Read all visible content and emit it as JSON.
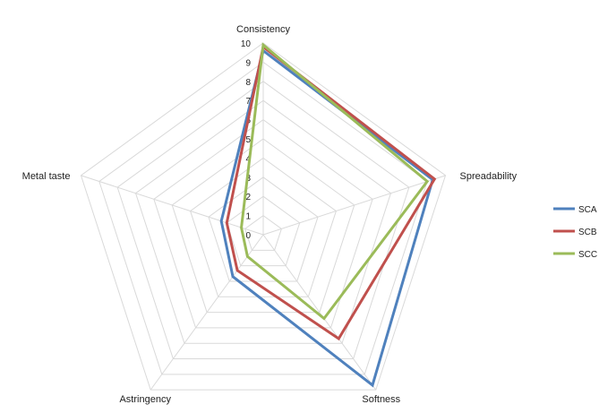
{
  "chart_data": {
    "type": "radar",
    "axes": [
      "Consistency",
      "Spreadability",
      "Softness",
      "Astringency",
      "Metal taste"
    ],
    "rlim": [
      0,
      10
    ],
    "ticks": [
      "0",
      "1",
      "2",
      "3",
      "4",
      "5",
      "6",
      "7",
      "8",
      "9",
      "10"
    ],
    "grid": true,
    "legend_position": "right",
    "series": [
      {
        "name": "SCA",
        "color": "#4f81bd",
        "values": [
          9.6,
          9.3,
          9.7,
          2.7,
          2.3
        ]
      },
      {
        "name": "SCB",
        "color": "#c0504d",
        "values": [
          9.8,
          9.4,
          6.7,
          2.3,
          2.0
        ]
      },
      {
        "name": "SCC",
        "color": "#9bbb59",
        "values": [
          9.9,
          9.0,
          5.4,
          1.4,
          1.2
        ]
      }
    ]
  }
}
